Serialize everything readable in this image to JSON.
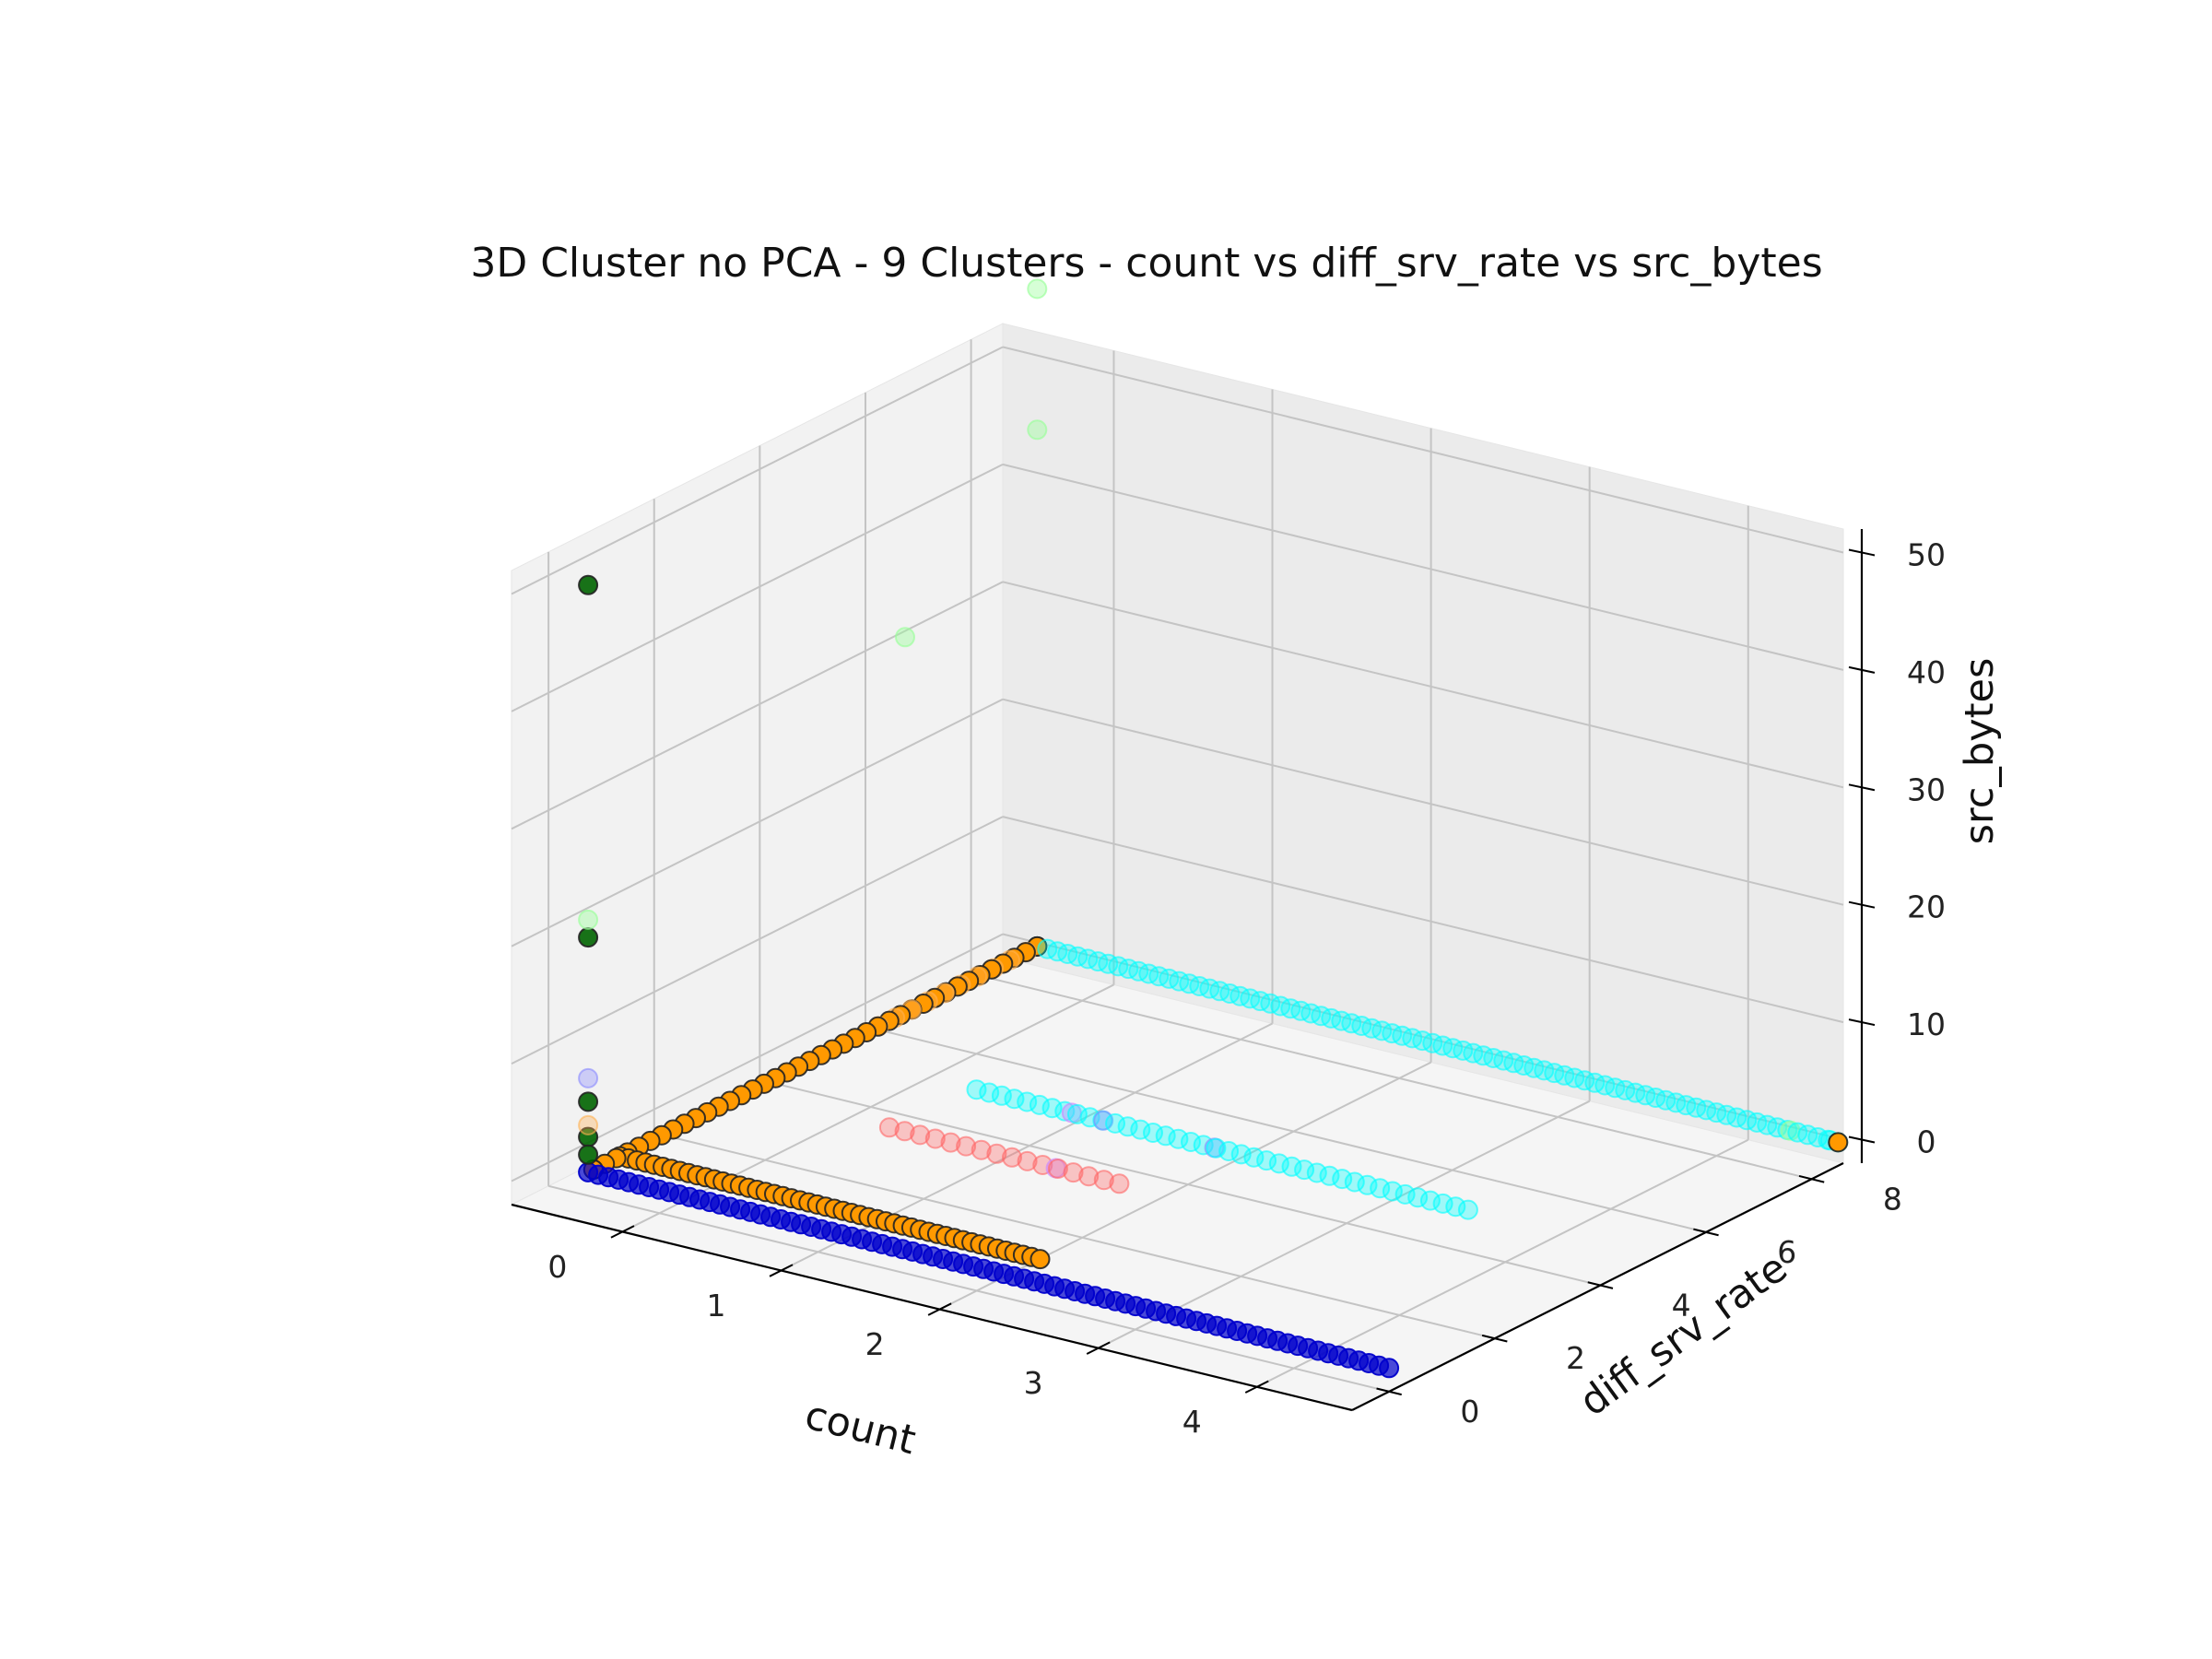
{
  "chart_data": {
    "type": "scatter",
    "projection": "3d",
    "title": "3D Cluster no PCA - 9 Clusters - count vs diff_srv_rate vs src_bytes",
    "xlabel": "count",
    "ylabel": "diff_srv_rate",
    "zlabel": "src_bytes",
    "xlim": [
      -0.7,
      4.6
    ],
    "ylim": [
      -0.7,
      8.6
    ],
    "zlim": [
      -2,
      52
    ],
    "x_ticks": [
      "0",
      "1",
      "2",
      "3",
      "4"
    ],
    "y_ticks": [
      "0",
      "2",
      "4",
      "6",
      "8"
    ],
    "z_ticks": [
      "0",
      "10",
      "20",
      "30",
      "40",
      "50"
    ],
    "grid": true,
    "legend": "none",
    "clusters": [
      {
        "color": "#0000cc",
        "alpha": 0.7,
        "lines": [
          {
            "from": [
              -0.45,
              0,
              0
            ],
            "to": [
              4.6,
              0,
              0
            ],
            "n": 80
          }
        ],
        "points": []
      },
      {
        "color": "#00ffff",
        "alpha": 0.35,
        "lines": [
          {
            "from": [
              -0.45,
              8.5,
              0
            ],
            "to": [
              4.6,
              8.5,
              0
            ],
            "n": 80
          },
          {
            "from": [
              0.5,
              4.5,
              0
            ],
            "to": [
              3.6,
              4.5,
              0
            ],
            "n": 40
          }
        ],
        "points": [
          [
            4.55,
            8.5,
            0
          ]
        ]
      },
      {
        "color": "#ff6666",
        "alpha": 0.35,
        "lines": [
          {
            "from": [
              0.45,
              3.0,
              0
            ],
            "to": [
              1.9,
              3.0,
              0
            ],
            "n": 16
          }
        ],
        "points": []
      },
      {
        "color": "#ff9900",
        "alpha": 1.0,
        "outline": true,
        "lines": [
          {
            "from": [
              -0.45,
              0.1,
              0
            ],
            "to": [
              -0.45,
              8.5,
              0
            ],
            "n": 40
          },
          {
            "from": [
              -0.45,
              0.6,
              0
            ],
            "to": [
              2.2,
              0.6,
              0
            ],
            "n": 50
          }
        ],
        "points": [
          [
            -0.45,
            8.5,
            0
          ],
          [
            4.6,
            8.5,
            0
          ],
          [
            -0.45,
            0.1,
            0
          ]
        ]
      },
      {
        "color": "#006400",
        "alpha": 0.9,
        "outline": true,
        "lines": [],
        "points": [
          [
            -0.45,
            0,
            50
          ],
          [
            -0.45,
            0,
            20
          ],
          [
            -0.45,
            0,
            6
          ],
          [
            -0.45,
            0,
            3
          ],
          [
            -0.45,
            0,
            1.5
          ]
        ]
      },
      {
        "color": "#99ff99",
        "alpha": 0.4,
        "lines": [],
        "points": [
          [
            -0.45,
            0,
            21.5
          ],
          [
            -0.45,
            8.5,
            44
          ],
          [
            -0.45,
            8.5,
            56
          ],
          [
            -0.45,
            6.0,
            32
          ],
          [
            4.3,
            8.5,
            0
          ]
        ]
      },
      {
        "color": "#8888ff",
        "alpha": 0.35,
        "lines": [],
        "points": [
          [
            -0.45,
            0,
            8
          ],
          [
            1.3,
            4.5,
            0
          ],
          [
            2.0,
            4.5,
            0
          ]
        ]
      },
      {
        "color": "#ffb050",
        "alpha": 0.35,
        "lines": [
          {
            "from": [
              -0.45,
              5.5,
              0
            ],
            "to": [
              -0.45,
              8.3,
              0
            ],
            "n": 10
          }
        ],
        "points": [
          [
            -0.45,
            0,
            4
          ]
        ]
      },
      {
        "color": "#cc88ff",
        "alpha": 0.4,
        "lines": [],
        "points": [
          [
            1.1,
            4.5,
            0
          ],
          [
            1.5,
            3.0,
            0
          ]
        ]
      }
    ]
  }
}
